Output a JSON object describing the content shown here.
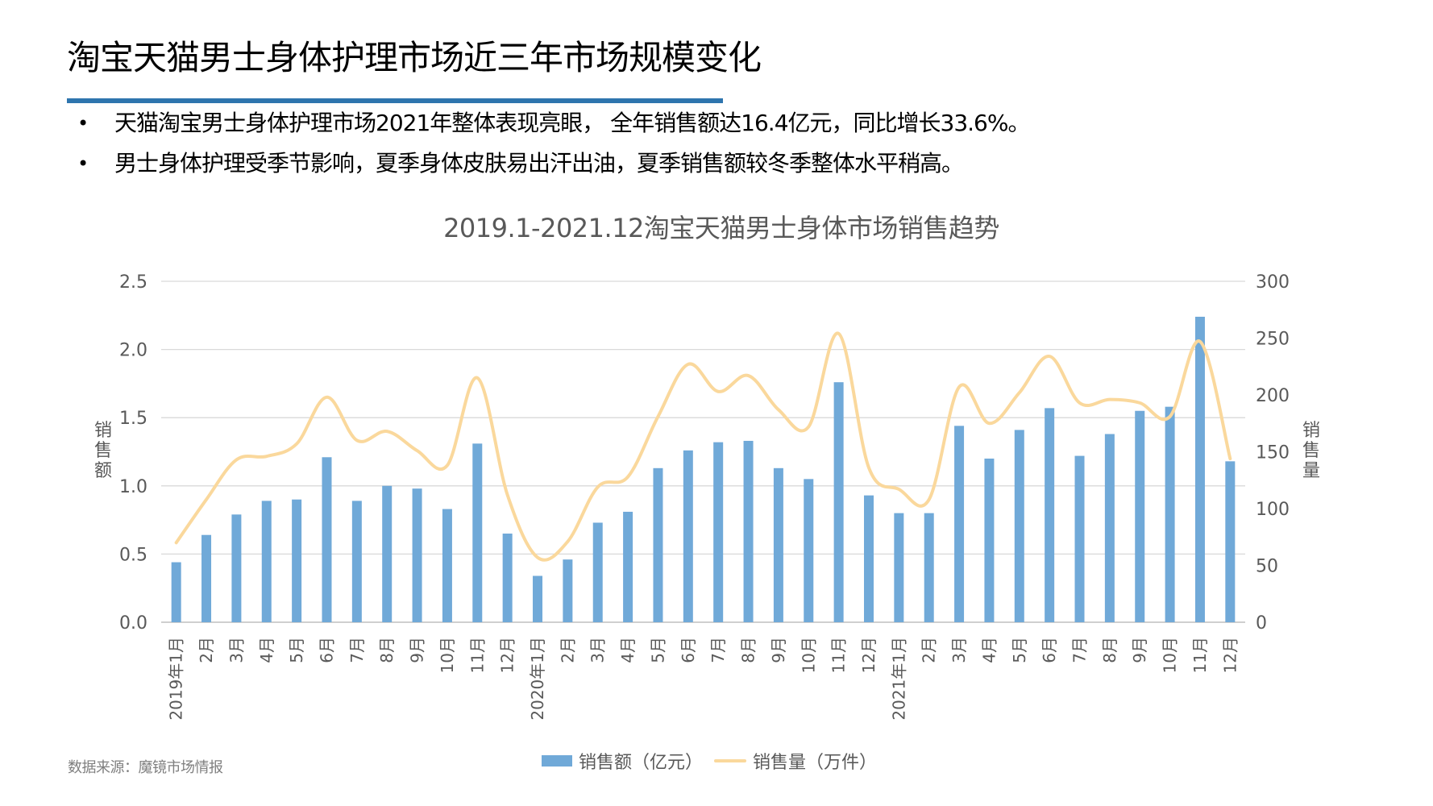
{
  "page": {
    "title": "淘宝天猫男士身体护理市场近三年市场规模变化",
    "bullets": [
      "天猫淘宝男士身体护理市场2021年整体表现亮眼， 全年销售额达16.4亿元，同比增长33.6%。",
      "男士身体护理受季节影响，夏季身体皮肤易出汗出油，夏季销售额较冬季整体水平稍高。"
    ],
    "bullet_symbol": "•",
    "source": "数据来源：魔镜市场情报",
    "accent_color": "#2E75AE"
  },
  "chart_data": {
    "type": "bar+line",
    "title": "2019.1-2021.12淘宝天猫男士身体市场销售趋势",
    "xlabel": "",
    "ylabel": "销售额",
    "ylabel_right": "销售量",
    "ylim": [
      0,
      2.5
    ],
    "ylim_right": [
      0,
      300
    ],
    "yticks": [
      "0.0",
      "0.5",
      "1.0",
      "1.5",
      "2.0",
      "2.5"
    ],
    "yticks_right": [
      "0",
      "50",
      "100",
      "150",
      "200",
      "250",
      "300"
    ],
    "grid": true,
    "legend_position": "bottom",
    "categories": [
      "2019年1月",
      "2月",
      "3月",
      "4月",
      "5月",
      "6月",
      "7月",
      "8月",
      "9月",
      "10月",
      "11月",
      "12月",
      "2020年1月",
      "2月",
      "3月",
      "4月",
      "5月",
      "6月",
      "7月",
      "8月",
      "9月",
      "10月",
      "11月",
      "12月",
      "2021年1月",
      "2月",
      "3月",
      "4月",
      "5月",
      "6月",
      "7月",
      "8月",
      "9月",
      "10月",
      "11月",
      "12月"
    ],
    "series": [
      {
        "name": "销售额（亿元）",
        "type": "bar",
        "axis": "left",
        "color": "#70A9D8",
        "values": [
          0.44,
          0.64,
          0.79,
          0.89,
          0.9,
          1.21,
          0.89,
          1.0,
          0.98,
          0.83,
          1.31,
          0.65,
          0.34,
          0.46,
          0.73,
          0.81,
          1.13,
          1.26,
          1.32,
          1.33,
          1.13,
          1.05,
          1.76,
          0.93,
          0.8,
          0.8,
          1.44,
          1.2,
          1.41,
          1.57,
          1.22,
          1.38,
          1.55,
          1.58,
          2.24,
          1.18
        ]
      },
      {
        "name": "销售量（万件）",
        "type": "line",
        "axis": "right",
        "smooth": true,
        "color": "#FAD89C",
        "values": [
          70,
          108,
          143,
          146,
          157,
          198,
          160,
          168,
          151,
          138,
          215,
          112,
          57,
          71,
          119,
          128,
          181,
          227,
          203,
          217,
          187,
          172,
          254,
          136,
          117,
          108,
          207,
          175,
          202,
          234,
          193,
          196,
          193,
          181,
          247,
          144
        ]
      }
    ]
  }
}
